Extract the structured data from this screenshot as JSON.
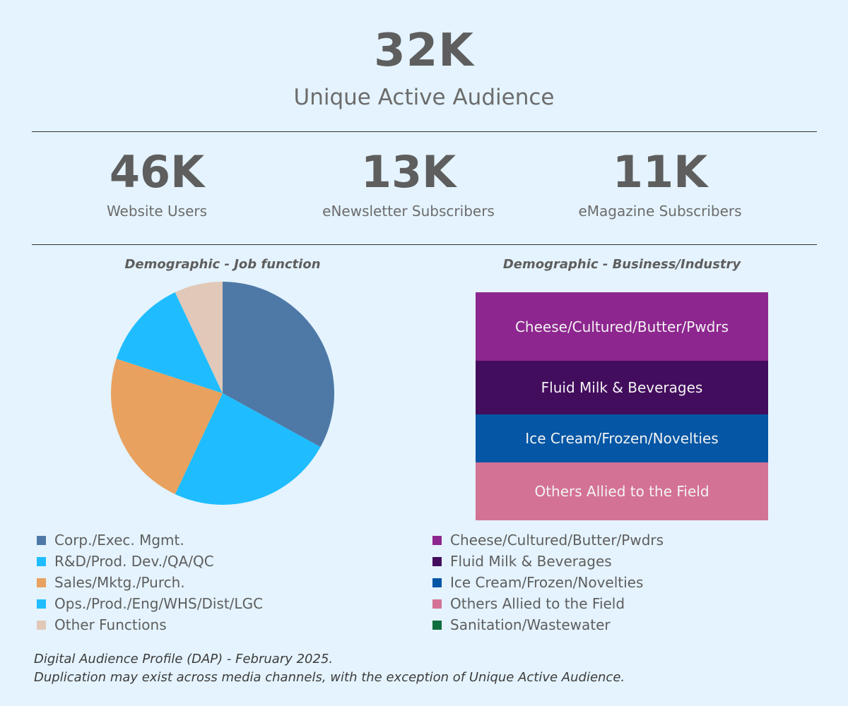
{
  "summary": {
    "value": "32K",
    "label": "Unique Active Audience"
  },
  "stats": [
    {
      "value": "46K",
      "label": "Website Users"
    },
    {
      "value": "13K",
      "label": "eNewsletter Subscribers"
    },
    {
      "value": "11K",
      "label": "eMagazine Subscribers"
    }
  ],
  "chart_data": [
    {
      "type": "pie",
      "title": "Demographic - Job function",
      "legend_position": "bottom",
      "slices": [
        {
          "label": "Corp./Exec. Mgmt.",
          "value": 33,
          "color": "#4e79a7"
        },
        {
          "label": "R&D/Prod. Dev./QA/QC",
          "value": 24,
          "color": "#1fbdff"
        },
        {
          "label": "Sales/Mktg./Purch.",
          "value": 23,
          "color": "#e8a15e"
        },
        {
          "label": "Ops./Prod./Eng/WHS/Dist/LGC",
          "value": 13,
          "color": "#1fbdff"
        },
        {
          "label": "Other Functions",
          "value": 7,
          "color": "#e2c8b8"
        }
      ]
    },
    {
      "type": "treemap",
      "title": "Demographic - Business/Industry",
      "legend_position": "bottom",
      "items": [
        {
          "label": "Cheese/Cultured/Butter/Pwdrs",
          "value": 30,
          "color": "#8e268f",
          "shown": true
        },
        {
          "label": "Fluid Milk & Beverages",
          "value": 23.5,
          "color": "#430d5e",
          "shown": true
        },
        {
          "label": "Ice Cream/Frozen/Novelties",
          "value": 21,
          "color": "#0556a5",
          "shown": true
        },
        {
          "label": "Others Allied to the Field",
          "value": 25.5,
          "color": "#d47295",
          "shown": true
        },
        {
          "label": "Sanitation/Wastewater",
          "value": 0,
          "color": "#0c6e3e",
          "shown": false
        }
      ]
    }
  ],
  "footnote": {
    "line1": "Digital Audience Profile (DAP) - February 2025.",
    "line2": "Duplication may exist across media channels, with the exception of Unique Active Audience."
  }
}
